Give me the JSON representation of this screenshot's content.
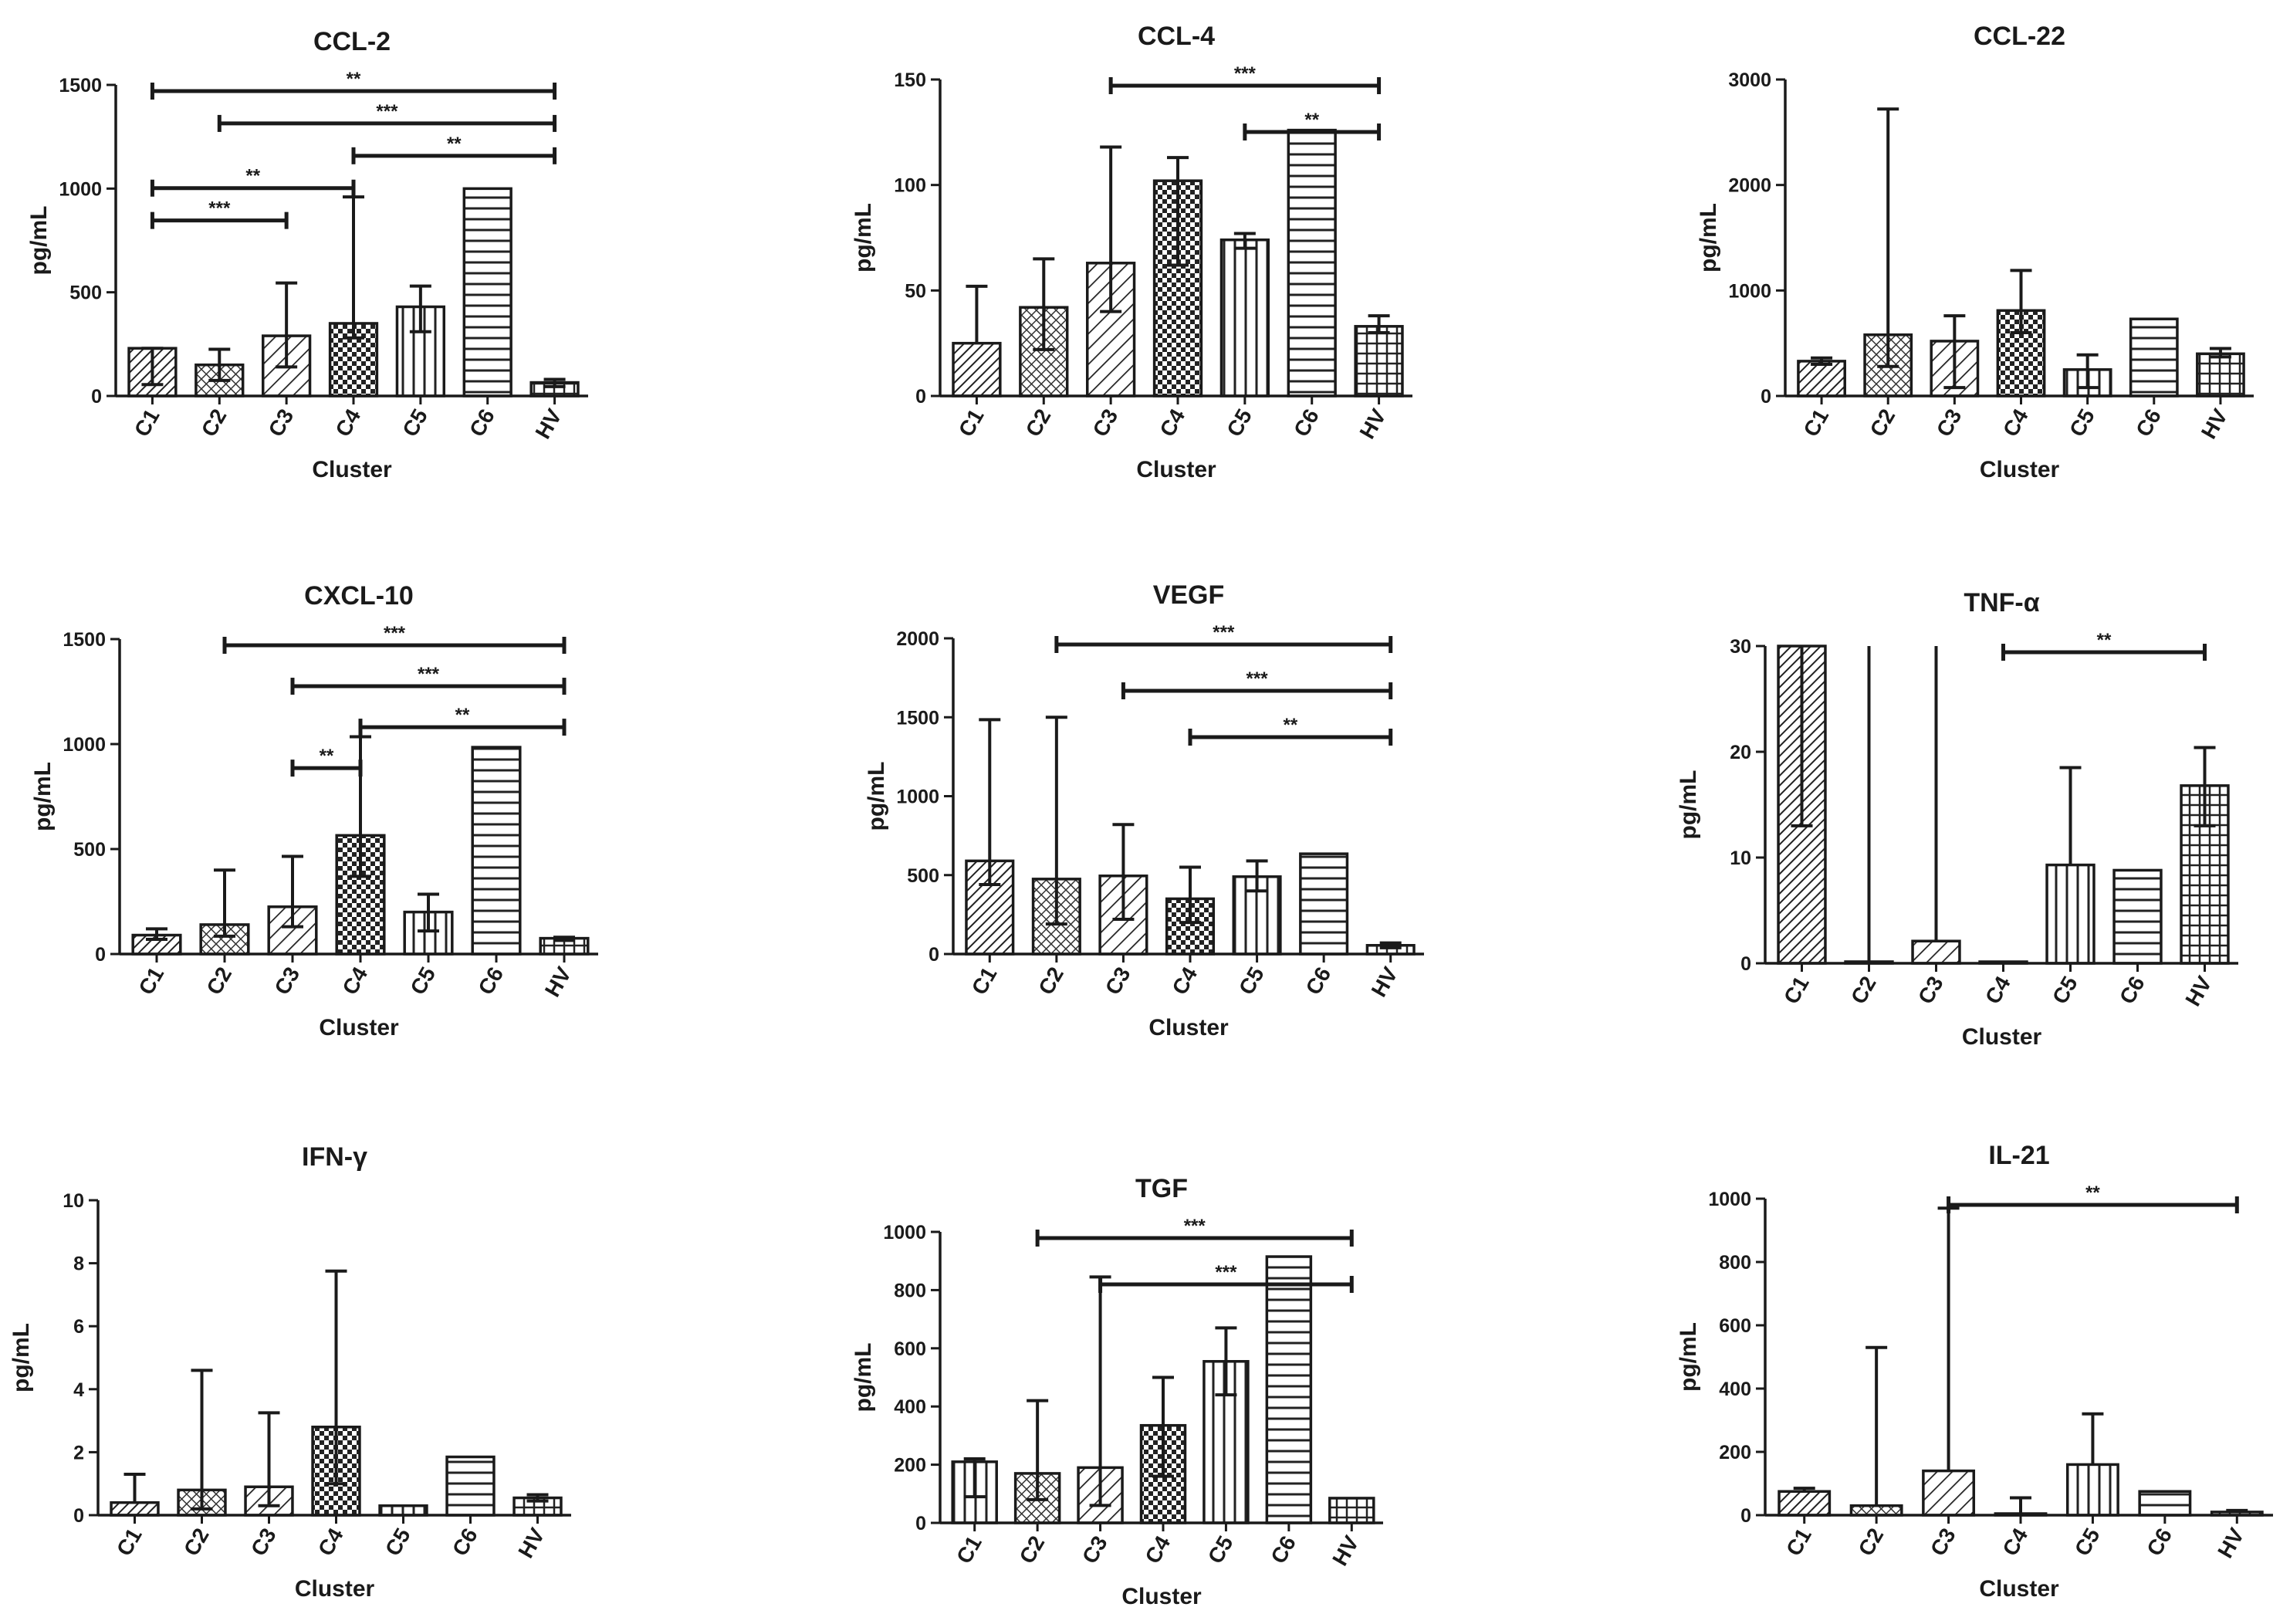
{
  "chart_data": [
    {
      "type": "bar",
      "title": "CCL-2",
      "xlabel": "Cluster",
      "ylabel": "pg/mL",
      "ylim": [
        0,
        1500
      ],
      "yticks": [
        0,
        500,
        1000,
        1500
      ],
      "tick_labels": [
        "0",
        "500",
        "1000",
        "1500"
      ],
      "categories": [
        "C1",
        "C2",
        "C3",
        "C4",
        "C5",
        "C6",
        "HV"
      ],
      "values": [
        230,
        150,
        290,
        350,
        430,
        1000,
        65
      ],
      "err_low": [
        55,
        75,
        140,
        280,
        310,
        null,
        45
      ],
      "err_high": [
        230,
        225,
        545,
        960,
        530,
        null,
        80
      ],
      "patterns": [
        "diag-dense",
        "cross",
        "diag",
        "checker",
        "vert",
        "horiz",
        "grid"
      ],
      "significance": [
        {
          "from": 1,
          "to": 3,
          "label": "***"
        },
        {
          "from": 1,
          "to": 4,
          "label": "**"
        },
        {
          "from": 4,
          "to": 7,
          "label": "**"
        },
        {
          "from": 2,
          "to": 7,
          "label": "***"
        },
        {
          "from": 1,
          "to": 7,
          "label": "**"
        }
      ]
    },
    {
      "type": "bar",
      "title": "CCL-4",
      "xlabel": "Cluster",
      "ylabel": "pg/mL",
      "ylim": [
        0,
        150
      ],
      "yticks": [
        0,
        50,
        100,
        150
      ],
      "tick_labels": [
        "0",
        "50",
        "100",
        "150"
      ],
      "categories": [
        "C1",
        "C2",
        "C3",
        "C4",
        "C5",
        "C6",
        "HV"
      ],
      "values": [
        25,
        42,
        63,
        102,
        74,
        126,
        33
      ],
      "err_low": [
        null,
        22,
        40,
        62,
        70,
        null,
        30
      ],
      "err_high": [
        52,
        65,
        118,
        113,
        77,
        null,
        38
      ],
      "patterns": [
        "diag-dense",
        "cross",
        "diag",
        "checker",
        "vert",
        "horiz",
        "grid"
      ],
      "significance": [
        {
          "from": 5,
          "to": 7,
          "label": "**"
        },
        {
          "from": 3,
          "to": 7,
          "label": "***"
        }
      ]
    },
    {
      "type": "bar",
      "title": "CCL-22",
      "xlabel": "Cluster",
      "ylabel": "pg/mL",
      "ylim": [
        0,
        3000
      ],
      "yticks": [
        0,
        1000,
        2000,
        3000
      ],
      "tick_labels": [
        "0",
        "1000",
        "2000",
        "3000"
      ],
      "categories": [
        "C1",
        "C2",
        "C3",
        "C4",
        "C5",
        "C6",
        "HV"
      ],
      "values": [
        330,
        580,
        520,
        810,
        250,
        730,
        400
      ],
      "err_low": [
        300,
        280,
        80,
        600,
        80,
        null,
        370
      ],
      "err_high": [
        360,
        2720,
        760,
        1190,
        390,
        null,
        450
      ],
      "patterns": [
        "diag-dense",
        "cross",
        "diag",
        "checker",
        "vert",
        "horiz",
        "grid"
      ],
      "significance": []
    },
    {
      "type": "bar",
      "title": "CXCL-10",
      "xlabel": "Cluster",
      "ylabel": "pg/mL",
      "ylim": [
        0,
        1500
      ],
      "yticks": [
        0,
        500,
        1000,
        1500
      ],
      "tick_labels": [
        "0",
        "500",
        "1000",
        "1500"
      ],
      "categories": [
        "C1",
        "C2",
        "C3",
        "C4",
        "C5",
        "C6",
        "HV"
      ],
      "values": [
        90,
        140,
        225,
        565,
        200,
        985,
        75
      ],
      "err_low": [
        70,
        85,
        130,
        370,
        110,
        null,
        65
      ],
      "err_high": [
        120,
        400,
        465,
        1035,
        285,
        null,
        80
      ],
      "patterns": [
        "diag-dense",
        "cross",
        "diag",
        "checker",
        "vert",
        "horiz",
        "grid"
      ],
      "significance": [
        {
          "from": 3,
          "to": 4,
          "label": "**"
        },
        {
          "from": 4,
          "to": 7,
          "label": "**"
        },
        {
          "from": 3,
          "to": 7,
          "label": "***"
        },
        {
          "from": 2,
          "to": 7,
          "label": "***"
        }
      ]
    },
    {
      "type": "bar",
      "title": "VEGF",
      "xlabel": "Cluster",
      "ylabel": "pg/mL",
      "ylim": [
        0,
        2000
      ],
      "yticks": [
        0,
        500,
        1000,
        1500,
        2000
      ],
      "tick_labels": [
        "0",
        "500",
        "1000",
        "1500",
        "2000"
      ],
      "categories": [
        "C1",
        "C2",
        "C3",
        "C4",
        "C5",
        "C6",
        "HV"
      ],
      "values": [
        590,
        475,
        495,
        350,
        490,
        635,
        55
      ],
      "err_low": [
        440,
        190,
        220,
        200,
        400,
        null,
        40
      ],
      "err_high": [
        1485,
        1500,
        820,
        550,
        590,
        null,
        70
      ],
      "patterns": [
        "diag-dense",
        "cross",
        "diag",
        "checker",
        "vert",
        "horiz",
        "grid"
      ],
      "significance": [
        {
          "from": 4,
          "to": 7,
          "label": "**"
        },
        {
          "from": 3,
          "to": 7,
          "label": "***"
        },
        {
          "from": 2,
          "to": 7,
          "label": "***"
        }
      ]
    },
    {
      "type": "bar",
      "title": "TNF-α",
      "xlabel": "Cluster",
      "ylabel": "pg/mL",
      "ylim": [
        0,
        30
      ],
      "yticks": [
        0,
        10,
        20,
        30
      ],
      "tick_labels": [
        "0",
        "10",
        "20",
        "30"
      ],
      "categories": [
        "C1",
        "C2",
        "C3",
        "C4",
        "C5",
        "C6",
        "HV"
      ],
      "values": [
        30,
        0.15,
        2.1,
        0.1,
        9.3,
        8.8,
        16.8
      ],
      "err_low": [
        13,
        null,
        null,
        null,
        null,
        null,
        13
      ],
      "err_high": [
        30,
        30,
        30,
        null,
        18.5,
        null,
        20.4
      ],
      "patterns": [
        "diag-dense",
        "cross",
        "diag",
        "checker",
        "vert",
        "horiz",
        "grid"
      ],
      "significance": [
        {
          "from": 4,
          "to": 7,
          "label": "**"
        }
      ]
    },
    {
      "type": "bar",
      "title": "IFN-γ",
      "xlabel": "Cluster",
      "ylabel": "pg/mL",
      "ylim": [
        0,
        10
      ],
      "yticks": [
        0,
        2,
        4,
        6,
        8,
        10
      ],
      "tick_labels": [
        "0",
        "2",
        "4",
        "6",
        "8",
        "10"
      ],
      "categories": [
        "C1",
        "C2",
        "C3",
        "C4",
        "C5",
        "C6",
        "HV"
      ],
      "values": [
        0.4,
        0.8,
        0.9,
        2.8,
        0.3,
        1.85,
        0.55
      ],
      "err_low": [
        null,
        0.2,
        0.3,
        1.0,
        null,
        null,
        0.45
      ],
      "err_high": [
        1.3,
        4.6,
        3.25,
        7.75,
        null,
        null,
        0.65
      ],
      "patterns": [
        "diag-dense",
        "cross",
        "diag",
        "checker",
        "vert",
        "horiz",
        "grid"
      ],
      "significance": []
    },
    {
      "type": "bar",
      "title": "TGF",
      "xlabel": "Cluster",
      "ylabel": "pg/mL",
      "ylim": [
        0,
        1000
      ],
      "yticks": [
        0,
        200,
        400,
        600,
        800,
        1000
      ],
      "tick_labels": [
        "0",
        "200",
        "400",
        "600",
        "800",
        "1000"
      ],
      "categories": [
        "C1",
        "C2",
        "C3",
        "C4",
        "C5",
        "C6",
        "HV"
      ],
      "values": [
        210,
        170,
        190,
        335,
        555,
        915,
        85
      ],
      "err_low": [
        90,
        80,
        60,
        160,
        440,
        null,
        null
      ],
      "err_high": [
        220,
        420,
        845,
        500,
        670,
        null,
        null
      ],
      "patterns": [
        "vert",
        "cross",
        "diag",
        "checker",
        "vert",
        "horiz",
        "grid"
      ],
      "significance": [
        {
          "from": 3,
          "to": 7,
          "label": "***"
        },
        {
          "from": 2,
          "to": 7,
          "label": "***"
        }
      ]
    },
    {
      "type": "bar",
      "title": "IL-21",
      "xlabel": "Cluster",
      "ylabel": "pg/mL",
      "ylim": [
        0,
        1000
      ],
      "yticks": [
        0,
        200,
        400,
        600,
        800,
        1000
      ],
      "tick_labels": [
        "0",
        "200",
        "400",
        "600",
        "800",
        "1000"
      ],
      "categories": [
        "C1",
        "C2",
        "C3",
        "C4",
        "C5",
        "C6",
        "HV"
      ],
      "values": [
        75,
        30,
        140,
        2,
        160,
        75,
        10
      ],
      "err_low": [
        null,
        null,
        null,
        null,
        null,
        null,
        null
      ],
      "err_high": [
        85,
        530,
        970,
        55,
        320,
        null,
        15
      ],
      "patterns": [
        "diag-dense",
        "cross",
        "diag",
        "checker",
        "vert",
        "horiz",
        "grid"
      ],
      "significance": [
        {
          "from": 3,
          "to": 7,
          "label": "**"
        }
      ]
    }
  ]
}
